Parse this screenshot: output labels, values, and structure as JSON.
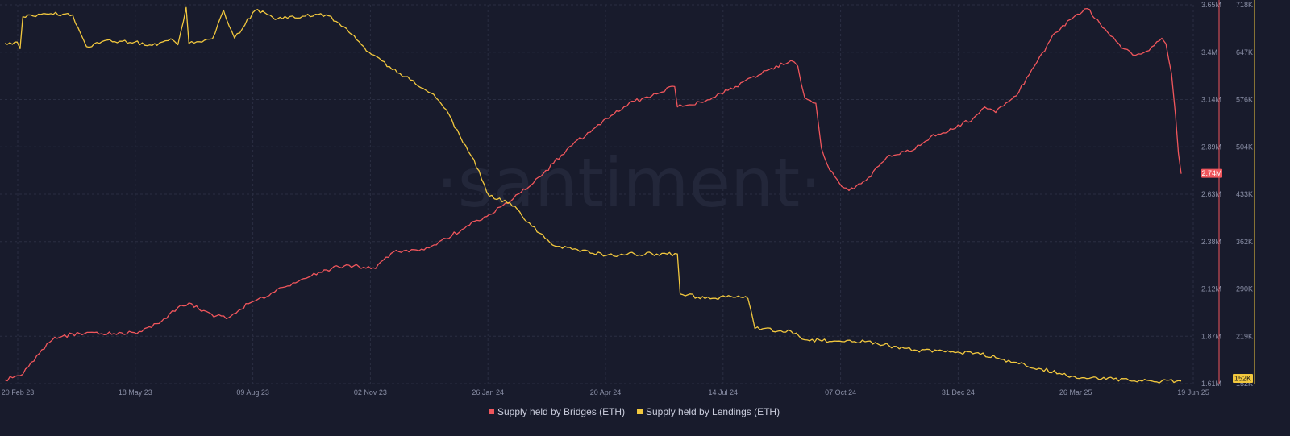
{
  "watermark": "·santiment·",
  "colors": {
    "background": "#181b2c",
    "grid": "#2a2e42",
    "bridges": "#f0565c",
    "lendings": "#f2c83e",
    "tick": "#8a8fa6"
  },
  "chart_data": {
    "type": "line",
    "grid": true,
    "legend_position": "bottom-center",
    "x_ticks": [
      "20 Feb 23",
      "18 May 23",
      "09 Aug 23",
      "02 Nov 23",
      "26 Jan 24",
      "20 Apr 24",
      "14 Jul 24",
      "07 Oct 24",
      "31 Dec 24",
      "26 Mar 25",
      "19 Jun 25"
    ],
    "x_range": [
      "20 Feb 23",
      "19 Jun 25"
    ],
    "y_left": {
      "label": "",
      "ticks": [
        "3.65M",
        "3.4M",
        "3.14M",
        "2.89M",
        "2.63M",
        "2.38M",
        "2.12M",
        "1.87M",
        "1.61M"
      ],
      "range": [
        1610000,
        3650000
      ]
    },
    "y_right": {
      "label": "",
      "ticks": [
        "718K",
        "647K",
        "576K",
        "504K",
        "433K",
        "362K",
        "290K",
        "219K",
        "152K"
      ],
      "range": [
        148000,
        718000
      ]
    },
    "series": [
      {
        "name": "Supply held by Bridges (ETH)",
        "axis": "left",
        "last_value_label": "2.74M",
        "points": [
          [
            "2023-02-20",
            1630000
          ],
          [
            "2023-03-05",
            1660000
          ],
          [
            "2023-03-15",
            1760000
          ],
          [
            "2023-03-28",
            1860000
          ],
          [
            "2023-04-15",
            1880000
          ],
          [
            "2023-05-10",
            1880000
          ],
          [
            "2023-05-30",
            1890000
          ],
          [
            "2023-06-15",
            1960000
          ],
          [
            "2023-06-25",
            2020000
          ],
          [
            "2023-07-05",
            2040000
          ],
          [
            "2023-07-12",
            2000000
          ],
          [
            "2023-07-30",
            1960000
          ],
          [
            "2023-08-15",
            2040000
          ],
          [
            "2023-09-01",
            2100000
          ],
          [
            "2023-09-20",
            2160000
          ],
          [
            "2023-10-05",
            2210000
          ],
          [
            "2023-10-25",
            2250000
          ],
          [
            "2023-11-15",
            2230000
          ],
          [
            "2023-11-28",
            2320000
          ],
          [
            "2023-12-20",
            2330000
          ],
          [
            "2024-01-05",
            2390000
          ],
          [
            "2024-01-20",
            2460000
          ],
          [
            "2024-02-05",
            2520000
          ],
          [
            "2024-02-15",
            2570000
          ],
          [
            "2024-02-28",
            2640000
          ],
          [
            "2024-03-15",
            2740000
          ],
          [
            "2024-04-01",
            2870000
          ],
          [
            "2024-04-20",
            2980000
          ],
          [
            "2024-05-05",
            3060000
          ],
          [
            "2024-05-20",
            3130000
          ],
          [
            "2024-06-05",
            3170000
          ],
          [
            "2024-06-18",
            3210000
          ],
          [
            "2024-06-20",
            3100000
          ],
          [
            "2024-07-10",
            3130000
          ],
          [
            "2024-08-01",
            3210000
          ],
          [
            "2024-08-25",
            3300000
          ],
          [
            "2024-09-10",
            3350000
          ],
          [
            "2024-09-15",
            3320000
          ],
          [
            "2024-09-20",
            3150000
          ],
          [
            "2024-09-28",
            3120000
          ],
          [
            "2024-10-02",
            2880000
          ],
          [
            "2024-10-08",
            2760000
          ],
          [
            "2024-10-15",
            2690000
          ],
          [
            "2024-10-22",
            2650000
          ],
          [
            "2024-11-05",
            2720000
          ],
          [
            "2024-11-20",
            2840000
          ],
          [
            "2024-12-05",
            2860000
          ],
          [
            "2024-12-20",
            2940000
          ],
          [
            "2025-01-05",
            2980000
          ],
          [
            "2025-01-20",
            3040000
          ],
          [
            "2025-01-28",
            3100000
          ],
          [
            "2025-02-05",
            3070000
          ],
          [
            "2025-02-20",
            3160000
          ],
          [
            "2025-03-05",
            3320000
          ],
          [
            "2025-03-20",
            3500000
          ],
          [
            "2025-04-05",
            3600000
          ],
          [
            "2025-04-12",
            3630000
          ],
          [
            "2025-04-25",
            3520000
          ],
          [
            "2025-05-05",
            3440000
          ],
          [
            "2025-05-15",
            3380000
          ],
          [
            "2025-05-25",
            3400000
          ],
          [
            "2025-06-05",
            3470000
          ],
          [
            "2025-06-08",
            3440000
          ],
          [
            "2025-06-12",
            3280000
          ],
          [
            "2025-06-15",
            3050000
          ],
          [
            "2025-06-17",
            2850000
          ],
          [
            "2025-06-19",
            2740000
          ]
        ]
      },
      {
        "name": "Supply held by Lendings (ETH)",
        "axis": "right",
        "last_value_label": "152K",
        "points": [
          [
            "2023-02-20",
            660000
          ],
          [
            "2023-03-01",
            662000
          ],
          [
            "2023-03-03",
            652000
          ],
          [
            "2023-03-05",
            700000
          ],
          [
            "2023-03-20",
            705000
          ],
          [
            "2023-04-10",
            703000
          ],
          [
            "2023-04-20",
            655000
          ],
          [
            "2023-05-05",
            665000
          ],
          [
            "2023-05-25",
            662000
          ],
          [
            "2023-06-10",
            657000
          ],
          [
            "2023-06-20",
            667000
          ],
          [
            "2023-06-25",
            658000
          ],
          [
            "2023-07-01",
            714000
          ],
          [
            "2023-07-03",
            660000
          ],
          [
            "2023-07-20",
            667000
          ],
          [
            "2023-07-28",
            710000
          ],
          [
            "2023-08-05",
            668000
          ],
          [
            "2023-08-20",
            710000
          ],
          [
            "2023-09-05",
            697000
          ],
          [
            "2023-09-25",
            701000
          ],
          [
            "2023-10-10",
            703000
          ],
          [
            "2023-10-25",
            682000
          ],
          [
            "2023-11-10",
            647000
          ],
          [
            "2023-11-25",
            625000
          ],
          [
            "2023-12-10",
            605000
          ],
          [
            "2023-12-25",
            585000
          ],
          [
            "2024-01-05",
            560000
          ],
          [
            "2024-01-15",
            520000
          ],
          [
            "2024-01-25",
            485000
          ],
          [
            "2024-02-05",
            430000
          ],
          [
            "2024-02-20",
            420000
          ],
          [
            "2024-03-05",
            390000
          ],
          [
            "2024-03-20",
            360000
          ],
          [
            "2024-04-05",
            350000
          ],
          [
            "2024-04-20",
            344000
          ],
          [
            "2024-05-05",
            340000
          ],
          [
            "2024-05-20",
            343000
          ],
          [
            "2024-06-05",
            343000
          ],
          [
            "2024-06-20",
            343000
          ],
          [
            "2024-06-22",
            283000
          ],
          [
            "2024-07-10",
            276000
          ],
          [
            "2024-07-25",
            278000
          ],
          [
            "2024-08-10",
            276000
          ],
          [
            "2024-08-15",
            231000
          ],
          [
            "2024-09-10",
            227000
          ],
          [
            "2024-09-20",
            214000
          ],
          [
            "2024-10-15",
            212000
          ],
          [
            "2024-11-10",
            210000
          ],
          [
            "2024-11-20",
            205000
          ],
          [
            "2024-12-10",
            198000
          ],
          [
            "2025-01-05",
            196000
          ],
          [
            "2025-01-25",
            192000
          ],
          [
            "2025-02-20",
            180000
          ],
          [
            "2025-03-10",
            170000
          ],
          [
            "2025-03-25",
            162000
          ],
          [
            "2025-04-10",
            157000
          ],
          [
            "2025-05-01",
            155000
          ],
          [
            "2025-05-20",
            153000
          ],
          [
            "2025-06-05",
            152000
          ],
          [
            "2025-06-19",
            152000
          ]
        ]
      }
    ]
  }
}
